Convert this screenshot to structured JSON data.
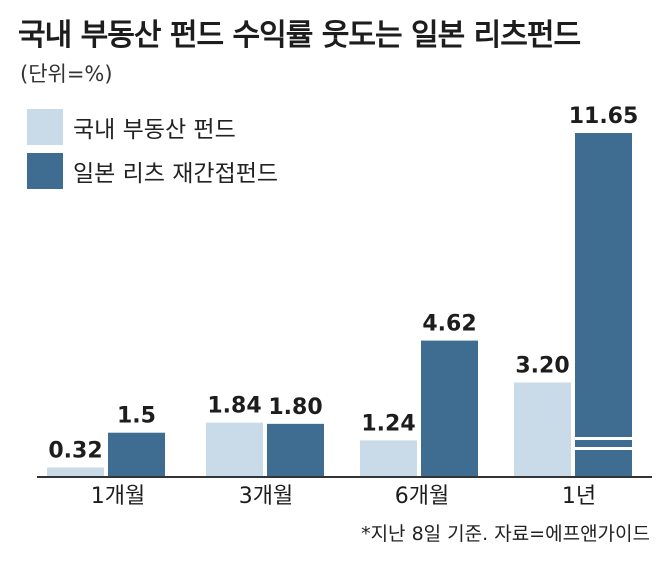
{
  "title": "국내 부동산 펀드 수익률 웃도는 일본 리츠펀드",
  "unit": "(단위=%)",
  "footnote": "*지난 8일 기준. 자료=에프앤가이드",
  "colors": {
    "domestic": "#c9dae8",
    "japan": "#3e6d91",
    "axis": "#333333"
  },
  "chart_data": {
    "type": "bar",
    "title": "국내 부동산 펀드 수익률 웃도는 일본 리츠펀드",
    "ylabel": "(단위=%)",
    "xlabel": "",
    "categories": [
      "1개월",
      "3개월",
      "6개월",
      "1년"
    ],
    "series": [
      {
        "name": "국내 부동산 펀드",
        "values": [
          0.32,
          1.84,
          1.24,
          3.2
        ],
        "labels": [
          "0.32",
          "1.84",
          "1.24",
          "3.20"
        ]
      },
      {
        "name": "일본 리츠 재간접펀드",
        "values": [
          1.5,
          1.8,
          4.62,
          11.65
        ],
        "labels": [
          "1.5",
          "1.80",
          "4.62",
          "11.65"
        ]
      }
    ],
    "axis_break": {
      "series": 1,
      "category": 3
    },
    "ylim": [
      0,
      11.65
    ],
    "grid": false,
    "legend": "top-left"
  }
}
